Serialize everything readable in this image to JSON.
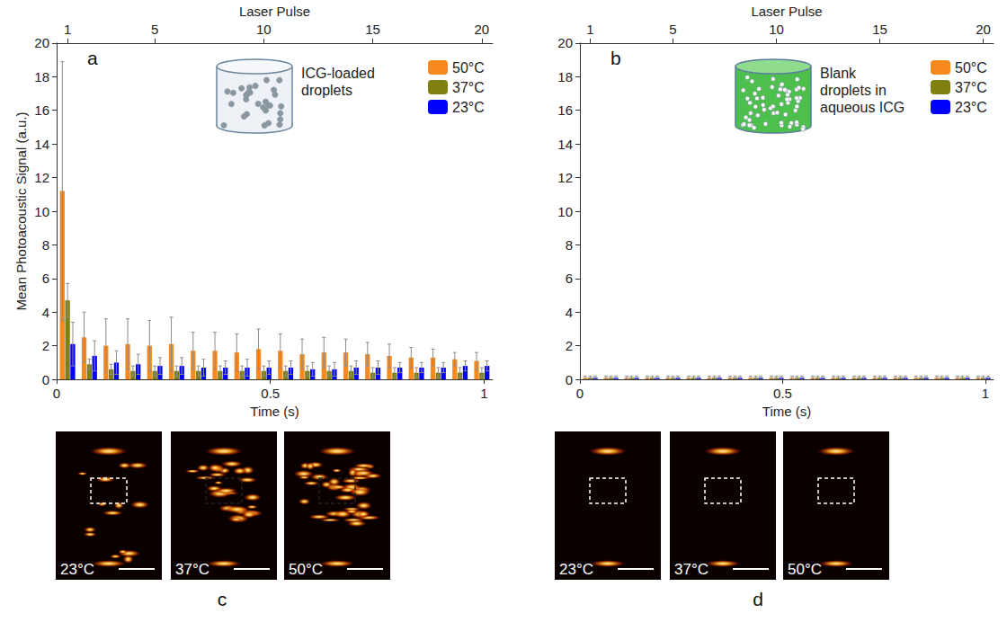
{
  "chart_data": [
    {
      "type": "bar",
      "panel_label": "a",
      "annotation": "ICG-loaded droplets",
      "x_label": "Time (s)",
      "x2_label": "Laser Pulse",
      "y_label": "Mean Photoacoustic Signal (a.u.)",
      "categories": [
        "1",
        null,
        null,
        null,
        "5",
        null,
        null,
        null,
        null,
        "10",
        null,
        null,
        null,
        null,
        "15",
        null,
        null,
        null,
        null,
        "20"
      ],
      "xlim": [
        0,
        1.02
      ],
      "xticks": [
        0,
        0.5,
        1
      ],
      "ylim": [
        0,
        20
      ],
      "yticks": [
        0,
        2,
        4,
        6,
        8,
        10,
        12,
        14,
        16,
        18,
        20
      ],
      "grid": false,
      "legend": "upper right",
      "series": [
        {
          "name": "50°C",
          "color": "#f7891f",
          "values": [
            11.2,
            2.5,
            2.0,
            2.1,
            2.0,
            2.1,
            1.7,
            1.7,
            1.6,
            1.8,
            1.7,
            1.5,
            1.6,
            1.6,
            1.5,
            1.4,
            1.3,
            1.3,
            1.2,
            1.1
          ],
          "errors": [
            7.7,
            1.5,
            1.6,
            1.5,
            1.5,
            1.6,
            1.1,
            1.1,
            1.1,
            1.2,
            1.0,
            0.9,
            0.9,
            0.8,
            0.7,
            0.7,
            0.6,
            0.5,
            0.4,
            0.5
          ]
        },
        {
          "name": "37°C",
          "color": "#808010",
          "values": [
            4.7,
            0.9,
            0.6,
            0.5,
            0.5,
            0.5,
            0.5,
            0.5,
            0.5,
            0.5,
            0.5,
            0.5,
            0.5,
            0.5,
            0.4,
            0.4,
            0.4,
            0.4,
            0.4,
            0.4
          ],
          "errors": [
            1.0,
            0.3,
            0.3,
            0.3,
            0.3,
            0.3,
            0.3,
            0.3,
            0.3,
            0.3,
            0.3,
            0.3,
            0.3,
            0.3,
            0.3,
            0.3,
            0.3,
            0.3,
            0.3,
            0.3
          ]
        },
        {
          "name": "23°C",
          "color": "#0000ff",
          "values": [
            2.1,
            1.4,
            1.0,
            0.9,
            0.8,
            0.8,
            0.7,
            0.7,
            0.7,
            0.7,
            0.7,
            0.6,
            0.6,
            0.7,
            0.7,
            0.7,
            0.7,
            0.7,
            0.8,
            0.8
          ],
          "errors": [
            1.3,
            0.9,
            0.7,
            0.6,
            0.5,
            0.5,
            0.5,
            0.4,
            0.5,
            0.4,
            0.4,
            0.4,
            0.4,
            0.4,
            0.4,
            0.3,
            0.3,
            0.3,
            0.3,
            0.3
          ]
        }
      ]
    },
    {
      "type": "bar",
      "panel_label": "b",
      "annotation": "Blank droplets in aqueous ICG",
      "x_label": "Time (s)",
      "x2_label": "Laser Pulse",
      "categories": [
        "1",
        null,
        null,
        null,
        "5",
        null,
        null,
        null,
        null,
        "10",
        null,
        null,
        null,
        null,
        "15",
        null,
        null,
        null,
        null,
        "20"
      ],
      "xlim": [
        0,
        1.02
      ],
      "xticks": [
        0,
        0.5,
        1
      ],
      "ylim": [
        0,
        20
      ],
      "yticks": [
        0,
        2,
        4,
        6,
        8,
        10,
        12,
        14,
        16,
        18,
        20
      ],
      "grid": false,
      "legend": "upper right",
      "series": [
        {
          "name": "50°C",
          "color": "#f7891f",
          "values": [
            0.1,
            0.1,
            0.1,
            0.1,
            0.1,
            0.1,
            0.1,
            0.1,
            0.1,
            0.1,
            0.1,
            0.1,
            0.1,
            0.1,
            0.1,
            0.1,
            0.1,
            0.1,
            0.1,
            0.1
          ],
          "errors": [
            0.1,
            0.1,
            0.1,
            0.1,
            0.1,
            0.1,
            0.1,
            0.1,
            0.1,
            0.1,
            0.1,
            0.1,
            0.1,
            0.1,
            0.1,
            0.1,
            0.1,
            0.1,
            0.1,
            0.1
          ]
        },
        {
          "name": "37°C",
          "color": "#808010",
          "values": [
            0.1,
            0.1,
            0.1,
            0.1,
            0.1,
            0.1,
            0.1,
            0.1,
            0.1,
            0.1,
            0.1,
            0.1,
            0.1,
            0.1,
            0.1,
            0.1,
            0.1,
            0.1,
            0.1,
            0.1
          ],
          "errors": [
            0.1,
            0.1,
            0.1,
            0.1,
            0.1,
            0.1,
            0.1,
            0.1,
            0.1,
            0.1,
            0.1,
            0.1,
            0.1,
            0.1,
            0.1,
            0.1,
            0.1,
            0.1,
            0.1,
            0.1
          ]
        },
        {
          "name": "23°C",
          "color": "#0000ff",
          "values": [
            0.1,
            0.1,
            0.1,
            0.1,
            0.1,
            0.1,
            0.1,
            0.1,
            0.1,
            0.1,
            0.1,
            0.1,
            0.1,
            0.1,
            0.1,
            0.1,
            0.1,
            0.1,
            0.1,
            0.1
          ],
          "errors": [
            0.1,
            0.1,
            0.1,
            0.1,
            0.1,
            0.1,
            0.1,
            0.1,
            0.1,
            0.1,
            0.1,
            0.1,
            0.1,
            0.1,
            0.1,
            0.1,
            0.1,
            0.1,
            0.1,
            0.1
          ]
        }
      ]
    }
  ],
  "image_panels": [
    {
      "panel_label": "c",
      "labels": [
        "23°C",
        "37°C",
        "50°C"
      ]
    },
    {
      "panel_label": "d",
      "labels": [
        "23°C",
        "37°C",
        "50°C"
      ]
    }
  ]
}
